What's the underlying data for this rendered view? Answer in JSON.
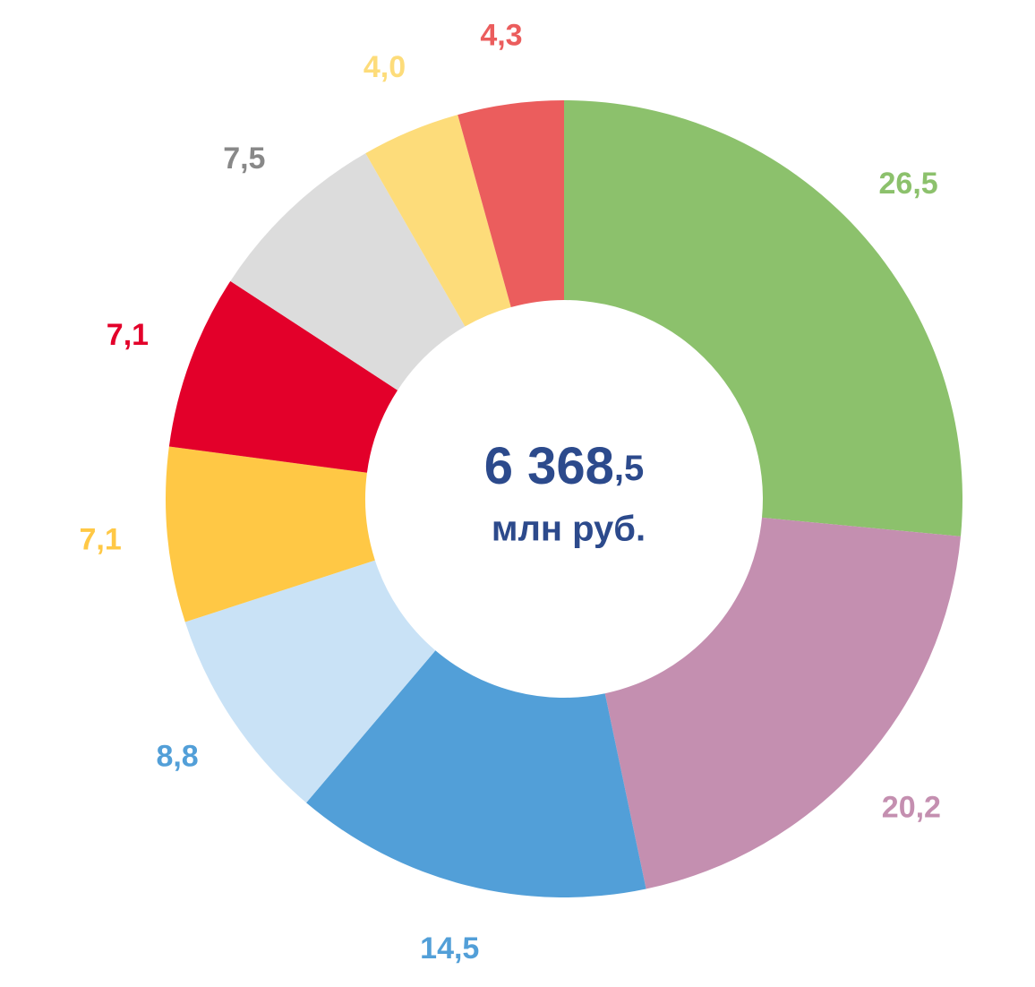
{
  "chart_data": {
    "type": "donut",
    "total": {
      "whole": "6 368",
      "fraction": ",5"
    },
    "unit": "млн руб.",
    "values": [
      26.5,
      20.2,
      14.5,
      8.8,
      7.1,
      7.1,
      7.5,
      4.0,
      4.3
    ],
    "value_labels": [
      "26,5",
      "20,2",
      "14,5",
      "8,8",
      "7,1",
      "7,1",
      "7,5",
      "4,0",
      "4,3"
    ],
    "colors": [
      "#8cc16c",
      "#c48fb0",
      "#529fd8",
      "#c9e2f6",
      "#ffc845",
      "#e3002a",
      "#dcdcdc",
      "#fddc7a",
      "#eb5d5d"
    ],
    "label_colors": [
      "#8cc16c",
      "#c48fb0",
      "#529fd8",
      "#529fd8",
      "#ffc845",
      "#e3002a",
      "#888888",
      "#fddc7a",
      "#eb5d5d"
    ],
    "text_color": "#2c4a8c"
  }
}
